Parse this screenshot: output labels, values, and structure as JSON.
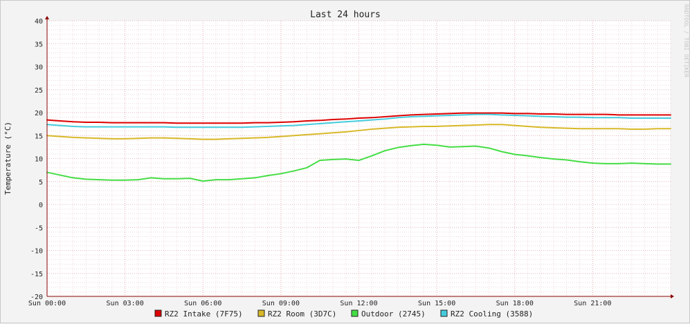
{
  "chart_data": {
    "type": "line",
    "title": "Last 24 hours",
    "ylabel": "Temperature (°C)",
    "watermark": "RRDTOOL / TOBI OETIKER",
    "ylim": [
      -20,
      40
    ],
    "yticks": [
      -20,
      -15,
      -10,
      -5,
      0,
      5,
      10,
      15,
      20,
      25,
      30,
      35,
      40
    ],
    "x_tick_hours": [
      0,
      3,
      6,
      9,
      12,
      15,
      18,
      21
    ],
    "x_tick_labels": [
      "Sun 00:00",
      "Sun 03:00",
      "Sun 06:00",
      "Sun 09:00",
      "Sun 12:00",
      "Sun 15:00",
      "Sun 18:00",
      "Sun 21:00"
    ],
    "x_hours": [
      0,
      0.5,
      1,
      1.5,
      2,
      2.5,
      3,
      3.5,
      4,
      4.5,
      5,
      5.5,
      6,
      6.5,
      7,
      7.5,
      8,
      8.5,
      9,
      9.5,
      10,
      10.5,
      11,
      11.5,
      12,
      12.5,
      13,
      13.5,
      14,
      14.5,
      15,
      15.5,
      16,
      16.5,
      17,
      17.5,
      18,
      18.5,
      19,
      19.5,
      20,
      20.5,
      21,
      21.5,
      22,
      22.5,
      23,
      23.5,
      24
    ],
    "grid": true,
    "legend_position": "bottom",
    "colors": {
      "background": "#ffffff",
      "grid_minor": "#efd7d7",
      "grid_major": "#e7b7b7",
      "axis": "#8b0000"
    },
    "series": [
      {
        "name": "RZ2 Intake (7F75)",
        "color": "#dd0000",
        "values": [
          18.4,
          18.2,
          18.0,
          17.9,
          17.9,
          17.8,
          17.8,
          17.8,
          17.8,
          17.8,
          17.7,
          17.7,
          17.7,
          17.7,
          17.7,
          17.7,
          17.8,
          17.8,
          17.9,
          18.0,
          18.2,
          18.3,
          18.5,
          18.6,
          18.8,
          18.9,
          19.1,
          19.3,
          19.5,
          19.6,
          19.7,
          19.8,
          19.9,
          19.9,
          19.9,
          19.9,
          19.8,
          19.8,
          19.7,
          19.7,
          19.6,
          19.6,
          19.6,
          19.6,
          19.5,
          19.5,
          19.5,
          19.5,
          19.5
        ]
      },
      {
        "name": "RZ2 Room (3D7C)",
        "color": "#d8b828",
        "values": [
          15.0,
          14.8,
          14.6,
          14.5,
          14.4,
          14.3,
          14.3,
          14.4,
          14.5,
          14.5,
          14.4,
          14.3,
          14.2,
          14.2,
          14.3,
          14.4,
          14.5,
          14.6,
          14.8,
          15.0,
          15.2,
          15.4,
          15.6,
          15.8,
          16.1,
          16.4,
          16.6,
          16.8,
          16.9,
          17.0,
          17.0,
          17.1,
          17.2,
          17.3,
          17.4,
          17.4,
          17.2,
          17.0,
          16.8,
          16.7,
          16.6,
          16.5,
          16.5,
          16.5,
          16.5,
          16.4,
          16.4,
          16.5,
          16.5
        ]
      },
      {
        "name": "Outdoor (2745)",
        "color": "#44dd44",
        "values": [
          7.0,
          6.4,
          5.8,
          5.5,
          5.4,
          5.3,
          5.3,
          5.4,
          5.8,
          5.6,
          5.6,
          5.7,
          5.1,
          5.4,
          5.4,
          5.6,
          5.8,
          6.3,
          6.7,
          7.3,
          8.0,
          9.6,
          9.8,
          9.9,
          9.6,
          10.6,
          11.7,
          12.4,
          12.8,
          13.1,
          12.9,
          12.5,
          12.6,
          12.7,
          12.3,
          11.5,
          10.9,
          10.6,
          10.2,
          9.9,
          9.7,
          9.3,
          9.0,
          8.9,
          8.9,
          9.0,
          8.9,
          8.8,
          8.8
        ]
      },
      {
        "name": "RZ2 Cooling (3588)",
        "color": "#44ccdd",
        "values": [
          17.4,
          17.2,
          17.0,
          16.9,
          16.9,
          16.9,
          16.9,
          16.9,
          16.9,
          16.9,
          16.8,
          16.8,
          16.8,
          16.8,
          16.8,
          16.8,
          16.9,
          17.0,
          17.1,
          17.2,
          17.4,
          17.6,
          17.8,
          18.0,
          18.2,
          18.4,
          18.6,
          18.9,
          19.1,
          19.2,
          19.3,
          19.4,
          19.5,
          19.6,
          19.6,
          19.5,
          19.4,
          19.3,
          19.2,
          19.1,
          19.0,
          19.0,
          18.9,
          18.9,
          18.9,
          18.8,
          18.8,
          18.8,
          18.8
        ]
      }
    ]
  }
}
